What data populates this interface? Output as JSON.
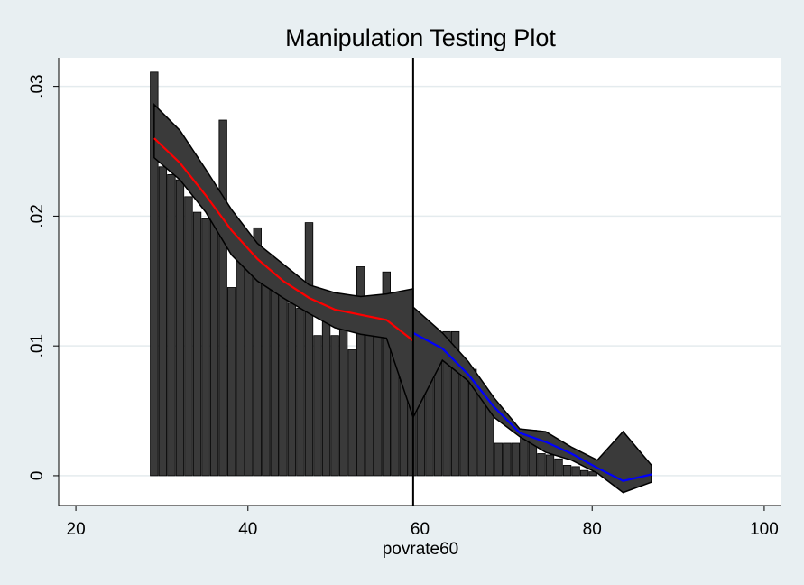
{
  "chart_data": {
    "type": "bar",
    "title": "Manipulation Testing Plot",
    "xlabel": "povrate60",
    "ylabel": "",
    "xlim": [
      18,
      102
    ],
    "ylim": [
      -0.0023,
      0.0322
    ],
    "x_ticks": [
      20,
      40,
      60,
      80,
      100
    ],
    "x_tick_labels": [
      "20",
      "40",
      "60",
      "80",
      "100"
    ],
    "y_ticks": [
      0,
      0.01,
      0.02,
      0.03
    ],
    "y_tick_labels": [
      "0",
      ".01",
      ".02",
      ".03"
    ],
    "grid": true,
    "cutoff": 59.2,
    "bar_width": 0.9,
    "bars": {
      "x": [
        29.1,
        30.1,
        31.1,
        32.1,
        33.1,
        34.1,
        35.1,
        36.1,
        37.1,
        38.1,
        39.1,
        40.1,
        41.1,
        42.1,
        43.1,
        44.1,
        45.1,
        46.1,
        47.1,
        48.1,
        49.1,
        50.1,
        51.1,
        52.1,
        53.1,
        54.1,
        55.1,
        56.1,
        57.1,
        58.1,
        59.1,
        60.1,
        61.1,
        62.1,
        63.1,
        64.1,
        65.1,
        66.1,
        67.1,
        68.1,
        69.1,
        70.1,
        71.1,
        72.1,
        73.1,
        74.1,
        75.1,
        76.1,
        77.1,
        78.1,
        79.1,
        80.1
      ],
      "values": [
        0.0311,
        0.0238,
        0.0232,
        0.0228,
        0.0215,
        0.0203,
        0.0198,
        0.0197,
        0.0274,
        0.0145,
        0.0178,
        0.0164,
        0.0191,
        0.0151,
        0.0144,
        0.0141,
        0.0133,
        0.0129,
        0.0195,
        0.0108,
        0.0122,
        0.0108,
        0.0115,
        0.0097,
        0.0161,
        0.011,
        0.0109,
        0.0157,
        0.0108,
        0.0084,
        0.0056,
        0.0075,
        0.0105,
        0.0098,
        0.0111,
        0.0111,
        0.0086,
        0.0082,
        0.0067,
        0.0059,
        0.0025,
        0.0025,
        0.0025,
        0.0035,
        0.0035,
        0.0017,
        0.0016,
        0.0013,
        0.0008,
        0.0007,
        0.0004,
        0.0003
      ]
    },
    "left_fit": {
      "color": "#ff0000",
      "x": [
        29.1,
        32.1,
        35.1,
        38.1,
        41.1,
        44.1,
        47.1,
        50.1,
        53.1,
        56.1,
        59.2
      ],
      "y": [
        0.026,
        0.0241,
        0.0216,
        0.0189,
        0.0167,
        0.015,
        0.0137,
        0.0128,
        0.0124,
        0.012,
        0.0104
      ],
      "lower": [
        0.0245,
        0.0228,
        0.0203,
        0.017,
        0.015,
        0.0137,
        0.0125,
        0.0114,
        0.0109,
        0.0106,
        0.0045
      ],
      "upper": [
        0.0286,
        0.0266,
        0.0236,
        0.0205,
        0.0179,
        0.0163,
        0.0147,
        0.0141,
        0.0138,
        0.014,
        0.0144
      ]
    },
    "right_fit": {
      "color": "#0000ff",
      "x": [
        59.2,
        62.6,
        65.6,
        68.6,
        71.6,
        74.6,
        77.6,
        80.6,
        83.6,
        86.9
      ],
      "y": [
        0.011,
        0.0098,
        0.0078,
        0.0053,
        0.0033,
        0.0026,
        0.0017,
        0.0006,
        -0.0004,
        0.0001
      ],
      "lower": [
        0.0045,
        0.0089,
        0.0073,
        0.0045,
        0.003,
        0.0018,
        0.0012,
        0.0002,
        -0.0013,
        -0.0005
      ],
      "upper": [
        0.013,
        0.011,
        0.0088,
        0.006,
        0.0036,
        0.0034,
        0.0022,
        0.0012,
        0.0034,
        0.0008
      ]
    }
  }
}
